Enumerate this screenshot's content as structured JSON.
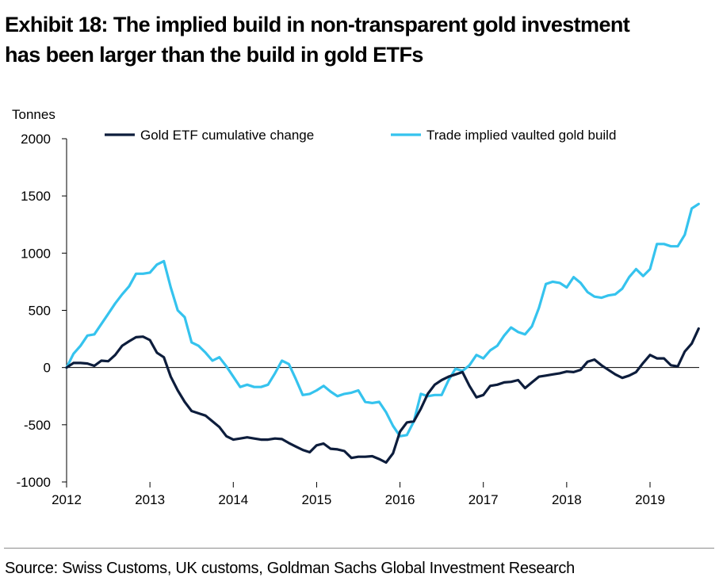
{
  "title_lines": [
    "Exhibit 18: The implied build in non-transparent gold investment",
    "has been larger than the build in gold ETFs"
  ],
  "source": "Source: Swiss Customs, UK customs, Goldman Sachs Global Investment Research",
  "chart_data": {
    "type": "line",
    "ylabel": "Tonnes",
    "ylim": [
      -1000,
      2000
    ],
    "yticks": [
      -1000,
      -500,
      0,
      500,
      1000,
      1500,
      2000
    ],
    "xlim": [
      2012,
      2019.6
    ],
    "xticks": [
      "2012",
      "2013",
      "2014",
      "2015",
      "2016",
      "2017",
      "2018",
      "2019"
    ],
    "grid": false,
    "legend_position": "top",
    "series": [
      {
        "name": "Gold ETF cumulative change",
        "color": "#0d1d3c",
        "points": [
          [
            2012.0,
            0
          ],
          [
            2012.083,
            40
          ],
          [
            2012.167,
            40
          ],
          [
            2012.25,
            35
          ],
          [
            2012.333,
            15
          ],
          [
            2012.417,
            60
          ],
          [
            2012.5,
            55
          ],
          [
            2012.583,
            110
          ],
          [
            2012.667,
            190
          ],
          [
            2012.75,
            230
          ],
          [
            2012.833,
            265
          ],
          [
            2012.917,
            270
          ],
          [
            2013.0,
            240
          ],
          [
            2013.083,
            130
          ],
          [
            2013.167,
            90
          ],
          [
            2013.25,
            -80
          ],
          [
            2013.333,
            -200
          ],
          [
            2013.417,
            -300
          ],
          [
            2013.5,
            -380
          ],
          [
            2013.583,
            -400
          ],
          [
            2013.667,
            -420
          ],
          [
            2013.75,
            -470
          ],
          [
            2013.833,
            -520
          ],
          [
            2013.917,
            -600
          ],
          [
            2014.0,
            -630
          ],
          [
            2014.083,
            -620
          ],
          [
            2014.167,
            -610
          ],
          [
            2014.25,
            -620
          ],
          [
            2014.333,
            -630
          ],
          [
            2014.417,
            -630
          ],
          [
            2014.5,
            -620
          ],
          [
            2014.583,
            -625
          ],
          [
            2014.667,
            -660
          ],
          [
            2014.75,
            -690
          ],
          [
            2014.833,
            -720
          ],
          [
            2014.917,
            -740
          ],
          [
            2015.0,
            -680
          ],
          [
            2015.083,
            -665
          ],
          [
            2015.167,
            -710
          ],
          [
            2015.25,
            -715
          ],
          [
            2015.333,
            -730
          ],
          [
            2015.417,
            -790
          ],
          [
            2015.5,
            -780
          ],
          [
            2015.583,
            -780
          ],
          [
            2015.667,
            -775
          ],
          [
            2015.75,
            -800
          ],
          [
            2015.833,
            -830
          ],
          [
            2015.917,
            -750
          ],
          [
            2016.0,
            -560
          ],
          [
            2016.083,
            -480
          ],
          [
            2016.167,
            -470
          ],
          [
            2016.25,
            -360
          ],
          [
            2016.333,
            -230
          ],
          [
            2016.417,
            -150
          ],
          [
            2016.5,
            -110
          ],
          [
            2016.583,
            -80
          ],
          [
            2016.667,
            -60
          ],
          [
            2016.75,
            -40
          ],
          [
            2016.833,
            -160
          ],
          [
            2016.917,
            -260
          ],
          [
            2017.0,
            -240
          ],
          [
            2017.083,
            -160
          ],
          [
            2017.167,
            -150
          ],
          [
            2017.25,
            -130
          ],
          [
            2017.333,
            -125
          ],
          [
            2017.417,
            -110
          ],
          [
            2017.5,
            -180
          ],
          [
            2017.583,
            -130
          ],
          [
            2017.667,
            -80
          ],
          [
            2017.75,
            -70
          ],
          [
            2017.833,
            -60
          ],
          [
            2017.917,
            -50
          ],
          [
            2018.0,
            -35
          ],
          [
            2018.083,
            -40
          ],
          [
            2018.167,
            -20
          ],
          [
            2018.25,
            50
          ],
          [
            2018.333,
            70
          ],
          [
            2018.417,
            20
          ],
          [
            2018.5,
            -20
          ],
          [
            2018.583,
            -60
          ],
          [
            2018.667,
            -90
          ],
          [
            2018.75,
            -70
          ],
          [
            2018.833,
            -40
          ],
          [
            2018.917,
            40
          ],
          [
            2019.0,
            110
          ],
          [
            2019.083,
            80
          ],
          [
            2019.167,
            80
          ],
          [
            2019.25,
            20
          ],
          [
            2019.333,
            10
          ],
          [
            2019.417,
            140
          ],
          [
            2019.5,
            210
          ],
          [
            2019.583,
            340
          ]
        ]
      },
      {
        "name": "Trade implied vaulted gold build",
        "color": "#35c3ee",
        "points": [
          [
            2012.0,
            0
          ],
          [
            2012.083,
            120
          ],
          [
            2012.167,
            190
          ],
          [
            2012.25,
            280
          ],
          [
            2012.333,
            290
          ],
          [
            2012.417,
            380
          ],
          [
            2012.5,
            470
          ],
          [
            2012.583,
            560
          ],
          [
            2012.667,
            640
          ],
          [
            2012.75,
            710
          ],
          [
            2012.833,
            820
          ],
          [
            2012.917,
            820
          ],
          [
            2013.0,
            830
          ],
          [
            2013.083,
            900
          ],
          [
            2013.167,
            930
          ],
          [
            2013.25,
            700
          ],
          [
            2013.333,
            500
          ],
          [
            2013.417,
            440
          ],
          [
            2013.5,
            220
          ],
          [
            2013.583,
            190
          ],
          [
            2013.667,
            130
          ],
          [
            2013.75,
            60
          ],
          [
            2013.833,
            90
          ],
          [
            2013.917,
            10
          ],
          [
            2014.0,
            -80
          ],
          [
            2014.083,
            -170
          ],
          [
            2014.167,
            -150
          ],
          [
            2014.25,
            -170
          ],
          [
            2014.333,
            -170
          ],
          [
            2014.417,
            -150
          ],
          [
            2014.5,
            -50
          ],
          [
            2014.583,
            60
          ],
          [
            2014.667,
            30
          ],
          [
            2014.75,
            -100
          ],
          [
            2014.833,
            -240
          ],
          [
            2014.917,
            -230
          ],
          [
            2015.0,
            -200
          ],
          [
            2015.083,
            -160
          ],
          [
            2015.167,
            -210
          ],
          [
            2015.25,
            -250
          ],
          [
            2015.333,
            -230
          ],
          [
            2015.417,
            -220
          ],
          [
            2015.5,
            -200
          ],
          [
            2015.583,
            -300
          ],
          [
            2015.667,
            -310
          ],
          [
            2015.75,
            -300
          ],
          [
            2015.833,
            -390
          ],
          [
            2015.917,
            -510
          ],
          [
            2016.0,
            -600
          ],
          [
            2016.083,
            -590
          ],
          [
            2016.167,
            -470
          ],
          [
            2016.25,
            -230
          ],
          [
            2016.333,
            -250
          ],
          [
            2016.417,
            -240
          ],
          [
            2016.5,
            -240
          ],
          [
            2016.583,
            -110
          ],
          [
            2016.667,
            -10
          ],
          [
            2016.75,
            -30
          ],
          [
            2016.833,
            20
          ],
          [
            2016.917,
            110
          ],
          [
            2017.0,
            80
          ],
          [
            2017.083,
            150
          ],
          [
            2017.167,
            190
          ],
          [
            2017.25,
            280
          ],
          [
            2017.333,
            350
          ],
          [
            2017.417,
            310
          ],
          [
            2017.5,
            290
          ],
          [
            2017.583,
            360
          ],
          [
            2017.667,
            520
          ],
          [
            2017.75,
            730
          ],
          [
            2017.833,
            750
          ],
          [
            2017.917,
            740
          ],
          [
            2018.0,
            700
          ],
          [
            2018.083,
            790
          ],
          [
            2018.167,
            740
          ],
          [
            2018.25,
            660
          ],
          [
            2018.333,
            620
          ],
          [
            2018.417,
            610
          ],
          [
            2018.5,
            630
          ],
          [
            2018.583,
            640
          ],
          [
            2018.667,
            690
          ],
          [
            2018.75,
            790
          ],
          [
            2018.833,
            860
          ],
          [
            2018.917,
            800
          ],
          [
            2019.0,
            860
          ],
          [
            2019.083,
            1080
          ],
          [
            2019.167,
            1080
          ],
          [
            2019.25,
            1060
          ],
          [
            2019.333,
            1060
          ],
          [
            2019.417,
            1160
          ],
          [
            2019.5,
            1390
          ],
          [
            2019.583,
            1430
          ]
        ]
      }
    ]
  }
}
